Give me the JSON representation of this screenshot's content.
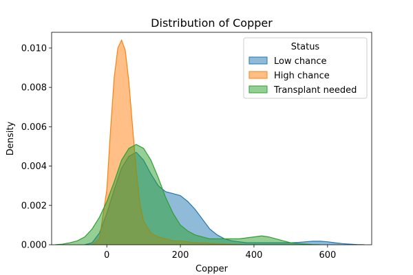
{
  "chart_data": {
    "type": "area",
    "title": "Distribution of Copper",
    "xlabel": "Copper",
    "ylabel": "Density",
    "xlim": [
      -150,
      720
    ],
    "ylim": [
      0,
      0.0108
    ],
    "x_ticks": [
      0,
      200,
      400,
      600
    ],
    "x_tick_labels": [
      "0",
      "200",
      "400",
      "600"
    ],
    "y_ticks": [
      0,
      0.002,
      0.004,
      0.006,
      0.008,
      0.01
    ],
    "y_tick_labels": [
      "0.000",
      "0.002",
      "0.004",
      "0.006",
      "0.008",
      "0.010"
    ],
    "grid": false,
    "legend": {
      "title": "Status",
      "placement": "upper-right"
    },
    "series": [
      {
        "name": "Low chance",
        "color": "#1f77b4",
        "x": [
          -60,
          -40,
          -20,
          0,
          20,
          40,
          60,
          80,
          100,
          120,
          140,
          160,
          180,
          200,
          220,
          240,
          260,
          280,
          300,
          320,
          340,
          360,
          380,
          400,
          420,
          440,
          460,
          480,
          500,
          520,
          540,
          560,
          580,
          600,
          620,
          640,
          660,
          680,
          700
        ],
        "y": [
          0.0,
          0.0001,
          0.0006,
          0.0016,
          0.0028,
          0.0039,
          0.0045,
          0.0047,
          0.0043,
          0.0036,
          0.003,
          0.0027,
          0.0026,
          0.0025,
          0.0022,
          0.0018,
          0.0013,
          0.0008,
          0.0005,
          0.0003,
          0.0002,
          0.00015,
          0.0001,
          0.0001,
          0.0001,
          0.0001,
          0.0001,
          0.0001,
          0.0001,
          0.00012,
          0.00015,
          0.00018,
          0.00018,
          0.00015,
          0.0001,
          6e-05,
          3e-05,
          1e-05,
          0.0
        ]
      },
      {
        "name": "High chance",
        "color": "#ff7f0e",
        "x": [
          -40,
          -20,
          0,
          10,
          20,
          30,
          40,
          50,
          60,
          70,
          80,
          90,
          100,
          120,
          140,
          160,
          180,
          200,
          220,
          240,
          260,
          280,
          300,
          320,
          340,
          360,
          380
        ],
        "y": [
          0.0,
          0.0003,
          0.0028,
          0.0058,
          0.0085,
          0.01,
          0.0104,
          0.0099,
          0.0083,
          0.006,
          0.0038,
          0.0021,
          0.0012,
          0.0006,
          0.0004,
          0.0003,
          0.0002,
          0.0002,
          0.00015,
          0.0001,
          0.0001,
          8e-05,
          6e-05,
          4e-05,
          2e-05,
          1e-05,
          0.0
        ]
      },
      {
        "name": "Transplant needed",
        "color": "#2ca02c",
        "x": [
          -140,
          -120,
          -100,
          -80,
          -60,
          -40,
          -20,
          0,
          20,
          40,
          60,
          80,
          100,
          120,
          140,
          160,
          180,
          200,
          220,
          240,
          260,
          280,
          300,
          320,
          340,
          360,
          380,
          400,
          420,
          440,
          460,
          480,
          500,
          520,
          540,
          560,
          580
        ],
        "y": [
          0.0,
          3e-05,
          0.0001,
          0.0002,
          0.0004,
          0.0008,
          0.0014,
          0.0022,
          0.0032,
          0.0043,
          0.0049,
          0.0051,
          0.0049,
          0.0043,
          0.0034,
          0.0024,
          0.0016,
          0.001,
          0.0007,
          0.0005,
          0.0004,
          0.0003,
          0.0003,
          0.0003,
          0.0003,
          0.0003,
          0.00035,
          0.0004,
          0.00045,
          0.0004,
          0.0003,
          0.0002,
          0.0001,
          6e-05,
          3e-05,
          1e-05,
          0.0
        ]
      }
    ]
  }
}
